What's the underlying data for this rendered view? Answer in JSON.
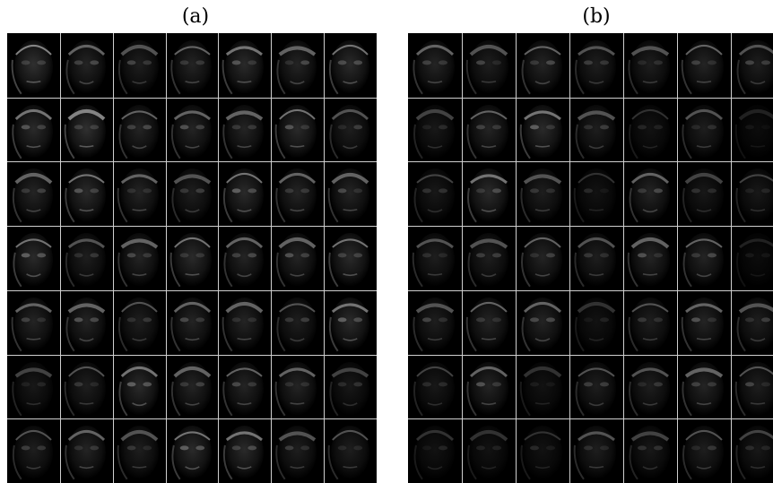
{
  "figure": {
    "panels": [
      {
        "label": "(a)",
        "rows": 7,
        "cols": 7,
        "tiles": [
          [
            0.8,
            0.6,
            0.5,
            0.6,
            0.7,
            0.6,
            0.7
          ],
          [
            0.7,
            0.8,
            0.6,
            0.6,
            0.6,
            0.7,
            0.5
          ],
          [
            0.6,
            0.7,
            0.6,
            0.5,
            0.7,
            0.6,
            0.6
          ],
          [
            0.7,
            0.5,
            0.6,
            0.7,
            0.6,
            0.6,
            0.7
          ],
          [
            0.6,
            0.6,
            0.5,
            0.6,
            0.6,
            0.5,
            0.7
          ],
          [
            0.4,
            0.5,
            0.7,
            0.6,
            0.6,
            0.6,
            0.4
          ],
          [
            0.5,
            0.6,
            0.5,
            0.7,
            0.7,
            0.5,
            0.5
          ]
        ]
      },
      {
        "label": "(b)",
        "rows": 7,
        "cols": 7,
        "tiles": [
          [
            0.6,
            0.5,
            0.6,
            0.5,
            0.5,
            0.6,
            0.5
          ],
          [
            0.4,
            0.6,
            0.7,
            0.5,
            0.3,
            0.5,
            0.2
          ],
          [
            0.4,
            0.7,
            0.5,
            0.3,
            0.6,
            0.4,
            0.4
          ],
          [
            0.5,
            0.5,
            0.6,
            0.5,
            0.6,
            0.6,
            0.2
          ],
          [
            0.5,
            0.6,
            0.6,
            0.3,
            0.5,
            0.6,
            0.5
          ],
          [
            0.4,
            0.6,
            0.3,
            0.5,
            0.5,
            0.6,
            0.5
          ],
          [
            0.3,
            0.3,
            0.3,
            0.5,
            0.4,
            0.5,
            0.4
          ]
        ]
      }
    ]
  }
}
